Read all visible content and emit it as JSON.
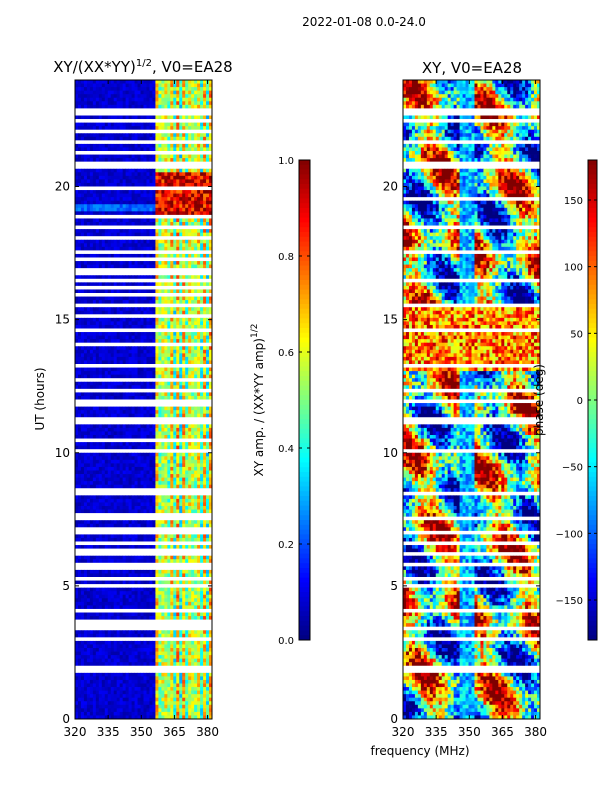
{
  "figure": {
    "suptitle": "2022-01-08 0.0-24.0",
    "shared_xlabel": "frequency (MHz)"
  },
  "colors": {
    "jet": [
      "#00007f",
      "#0000ff",
      "#007fff",
      "#00ffff",
      "#7fff7f",
      "#ffff00",
      "#ff7f00",
      "#ff0000",
      "#7f0000"
    ],
    "gap": "#ffffff",
    "frame": "#000000"
  },
  "chart_data": [
    {
      "type": "heatmap",
      "title_prefix": "XY/(XX*YY)",
      "title_exponent": "1/2",
      "title_suffix": ", V0=EA28",
      "xlabel": "",
      "ylabel": "UT (hours)",
      "xlim": [
        320,
        382
      ],
      "ylim": [
        0,
        24
      ],
      "xticks": [
        320,
        335,
        350,
        365,
        380
      ],
      "yticks": [
        0,
        5,
        10,
        15,
        20
      ],
      "colorbar": {
        "label": "XY amp. / (XX*YY amp)",
        "label_exponent": "1/2",
        "range": [
          0.0,
          1.0
        ],
        "ticks": [
          0.0,
          0.2,
          0.4,
          0.6,
          0.8,
          1.0
        ],
        "tick_labels": [
          "0.0",
          "0.2",
          "0.4",
          "0.6",
          "0.8",
          "1.0"
        ]
      },
      "gaps_hours": [
        1.75,
        1.9,
        3.0,
        3.45,
        3.6,
        4.1,
        4.95,
        5.3,
        5.7,
        5.85,
        6.15,
        6.3,
        6.6,
        7.0,
        7.15,
        7.5,
        7.65,
        8.45,
        8.6,
        10.05,
        10.45,
        11.2,
        11.75,
        11.95,
        12.3,
        12.75,
        13.3,
        14.1,
        14.65,
        15.1,
        15.55,
        15.9,
        16.25,
        16.5,
        16.8,
        17.3,
        17.5,
        18.1,
        18.45,
        18.9,
        19.9,
        20.8,
        21.3,
        21.7,
        22.05,
        22.5,
        22.8
      ],
      "summary_levels": {
        "background": 0.05,
        "band_360_382_mean": 0.45,
        "band_peak_19_20h": 1.0
      }
    },
    {
      "type": "heatmap",
      "title": "XY, V0=EA28",
      "xlabel": "frequency (MHz)",
      "ylabel": "",
      "xlim": [
        320,
        382
      ],
      "ylim": [
        0,
        24
      ],
      "xticks": [
        320,
        335,
        350,
        365,
        380
      ],
      "yticks": [
        0,
        5,
        10,
        15,
        20
      ],
      "colorbar": {
        "label": "phase (deg)",
        "range": [
          -180,
          180
        ],
        "ticks": [
          -150,
          -100,
          -50,
          0,
          50,
          100,
          150
        ],
        "tick_labels": [
          "−150",
          "−100",
          "−50",
          "0",
          "50",
          "100",
          "150"
        ]
      },
      "gaps_hours": [
        1.75,
        1.9,
        3.0,
        3.45,
        4.1,
        4.95,
        5.3,
        5.85,
        6.15,
        6.6,
        7.0,
        7.5,
        8.45,
        10.05,
        11.2,
        11.95,
        12.3,
        13.3,
        14.65,
        15.55,
        16.5,
        17.5,
        18.45,
        19.5,
        20.8,
        21.7,
        22.5,
        22.8
      ]
    }
  ]
}
